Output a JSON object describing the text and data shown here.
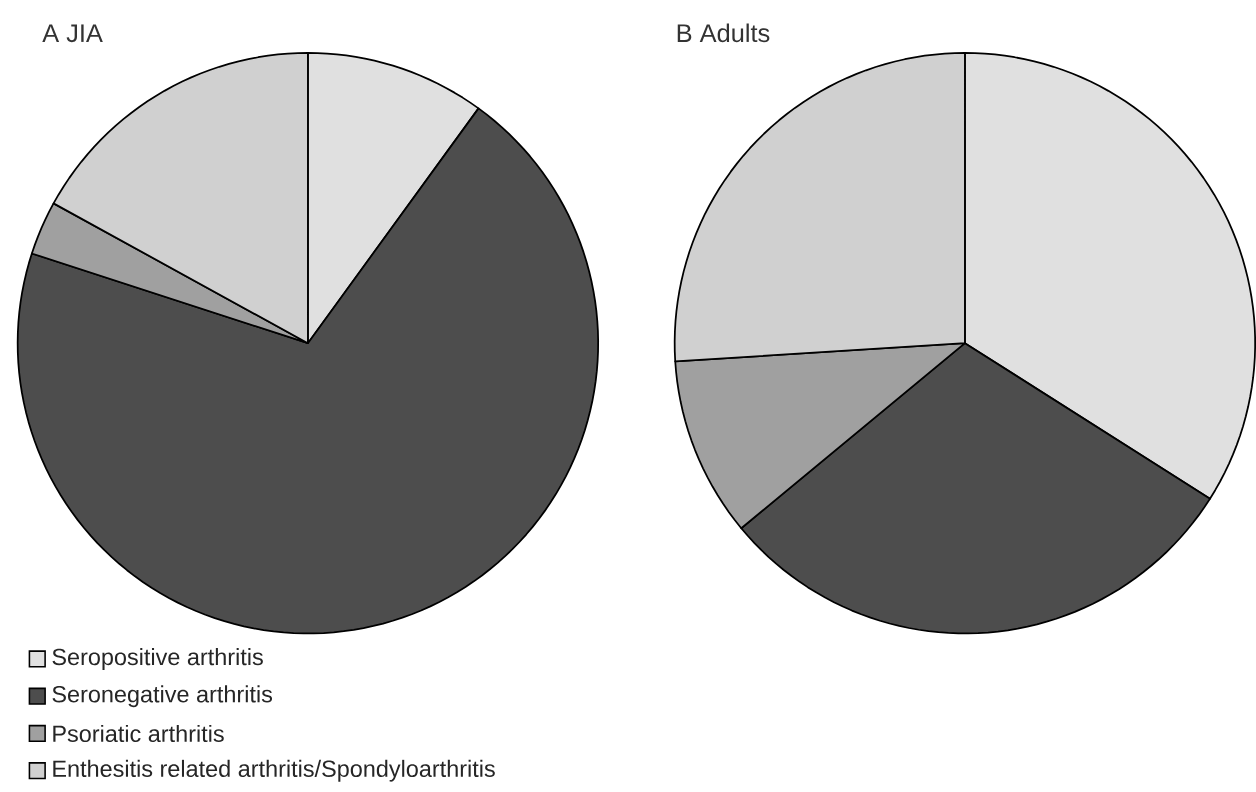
{
  "chart_data": [
    {
      "type": "pie",
      "title": "A  JIA",
      "categories": [
        "Seropositive arthritis",
        "Seronegative arthritis",
        "Psoriatic arthritis",
        "Enthesitis related arthritis/Spondyloarthritis"
      ],
      "values": [
        10,
        70,
        3,
        17
      ],
      "colors": [
        "#e0e0e0",
        "#4d4d4d",
        "#a0a0a0",
        "#d0d0d0"
      ],
      "legend": "bottom"
    },
    {
      "type": "pie",
      "title": "B  Adults",
      "values": [
        34,
        30,
        10,
        26
      ],
      "colors": [
        "#e0e0e0",
        "#4d4d4d",
        "#a0a0a0",
        "#d0d0d0"
      ]
    }
  ]
}
